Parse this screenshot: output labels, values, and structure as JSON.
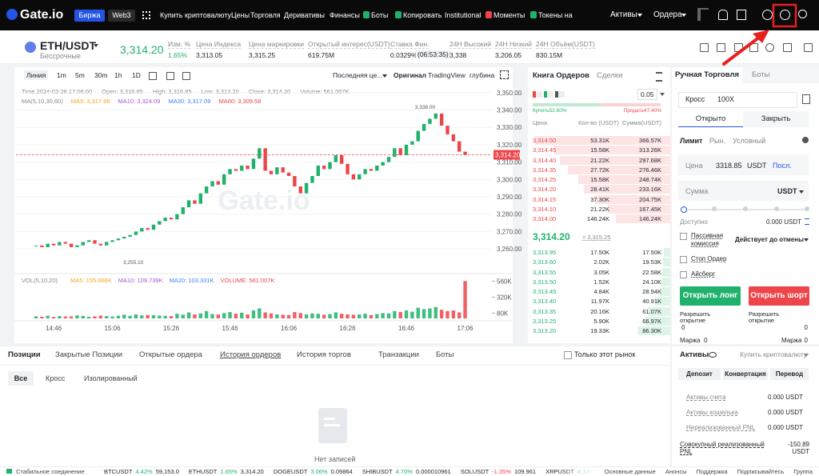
{
  "nav": {
    "logo": "Gate.io",
    "tabs": [
      "Биржа",
      "Web3"
    ],
    "menu": [
      "Купить криптовалюту",
      "Цены",
      "Торговля",
      "Деривативы",
      "Финансы",
      "Боты",
      "Копировать",
      "Institutional",
      "Моменты",
      "Токены на"
    ],
    "right": [
      "Активы",
      "Ордера"
    ]
  },
  "ticker": {
    "pair": "ETH/USDT",
    "kind": "Бессрочные",
    "price": "3,314.20",
    "stats": [
      [
        "Изм. %",
        "1.65%"
      ],
      [
        "Цена Индекса",
        "3,313.05"
      ],
      [
        "Цена маркировки",
        "3,315.25"
      ],
      [
        "Открытый интерес(USDT)",
        "619.75M"
      ],
      [
        "Ставка Фин.",
        "0.0329%",
        "(06:53:35)"
      ],
      [
        "24H Высокий",
        "3,338"
      ],
      [
        "24H Низкий",
        "3,206.05"
      ],
      [
        "24H Объём(USDT)",
        "830.15M"
      ]
    ]
  },
  "chart": {
    "intervals": [
      "Линия",
      "1m",
      "5m",
      "30m",
      "1h",
      "1D"
    ],
    "price_type": "Последняя це...",
    "views": [
      "Оригинал",
      "TradingView",
      "глубина"
    ],
    "info": [
      "Time 2024-02-28 17:06:00",
      "Open: 3,316.85",
      "High: 3,316.85",
      "Low: 3,313.20",
      "Close: 3,314.20",
      "Volume: 561.007K"
    ],
    "ma": {
      "title": "MA(5,10,30,60)",
      "items": [
        {
          "text": "MA5: 3,317.96",
          "color": "#f5a623"
        },
        {
          "text": "MA10: 3,324.09",
          "color": "#a259d9"
        },
        {
          "text": "MA30: 3,317.09",
          "color": "#3b82f6"
        },
        {
          "text": "MA60: 3,309.58",
          "color": "#e5484d"
        }
      ]
    },
    "watermark": "Gate.io",
    "ylim": [
      3249,
      3355
    ],
    "yticks": [
      {
        "value": 3350,
        "label": "3,350.00"
      },
      {
        "value": 3340,
        "label": "3,340.00"
      },
      {
        "value": 3330,
        "label": "3,330.00"
      },
      {
        "value": 3320,
        "label": "3,320.00"
      },
      {
        "value": 3310,
        "label": "3,310.00"
      },
      {
        "value": 3300,
        "label": "3,300.00"
      },
      {
        "value": 3290,
        "label": "3,290.00"
      },
      {
        "value": 3280,
        "label": "3,280.00"
      },
      {
        "value": 3270,
        "label": "3,270.00"
      },
      {
        "value": 3260,
        "label": "3,260.00"
      }
    ],
    "last_price": {
      "value": 3314.2,
      "label": "3,314.20"
    },
    "high_mark": {
      "value": 3338,
      "label": "3,338.00"
    },
    "low_mark": {
      "value": 3255.1,
      "label": "3,255.10"
    },
    "up_color": "#20b26c",
    "down_color": "#ef454a",
    "closes": [
      3262,
      3261,
      3263,
      3262,
      3264,
      3263,
      3261,
      3262,
      3264,
      3265,
      3263,
      3262,
      3264,
      3265,
      3266,
      3267,
      3268,
      3270,
      3272,
      3271,
      3274,
      3276,
      3278,
      3277,
      3280,
      3284,
      3288,
      3286,
      3292,
      3296,
      3299,
      3297,
      3303,
      3306,
      3305,
      3308,
      3306,
      3312,
      3318,
      3305,
      3303,
      3307,
      3304,
      3302,
      3296,
      3292,
      3298,
      3302,
      3308,
      3306,
      3310,
      3314,
      3309,
      3303,
      3300,
      3303,
      3306,
      3305,
      3308,
      3310,
      3313,
      3318,
      3314,
      3320,
      3322,
      3328,
      3332,
      3335,
      3338,
      3331,
      3326,
      3322,
      3316,
      3314.2
    ],
    "vol": {
      "title": "VOL(5,10,20)",
      "items": [
        {
          "text": "MA5: 155.666K",
          "color": "#f5a623"
        },
        {
          "text": "MA10: 109.739K",
          "color": "#a259d9"
        },
        {
          "text": "MA20: 103.331K",
          "color": "#3b82f6"
        },
        {
          "text": "VOLUME: 561.007K",
          "color": "#e5484d"
        }
      ],
      "ylim": [
        0,
        600
      ],
      "yticks": [
        {
          "value": 560,
          "label": "560K"
        },
        {
          "value": 320,
          "label": "320K"
        },
        {
          "value": 80,
          "label": "80K"
        }
      ],
      "values": [
        30,
        25,
        40,
        22,
        35,
        28,
        30,
        45,
        38,
        25,
        30,
        42,
        35,
        28,
        40,
        55,
        38,
        60,
        45,
        50,
        48,
        42,
        38,
        35,
        70,
        55,
        90,
        60,
        75,
        110,
        65,
        58,
        80,
        95,
        70,
        85,
        60,
        120,
        150,
        90,
        75,
        60,
        55,
        50,
        95,
        80,
        60,
        75,
        70,
        55,
        65,
        90,
        70,
        60,
        55,
        60,
        70,
        50,
        65,
        80,
        75,
        110,
        95,
        120,
        100,
        160,
        140,
        150,
        170,
        130,
        110,
        120,
        90,
        561
      ]
    },
    "xticks": [
      "14:46",
      "15:06",
      "15:26",
      "15:46",
      "16:06",
      "16:26",
      "16:46",
      "17:06"
    ]
  },
  "orderbook": {
    "tabs": [
      "Книга Ордеров",
      "Сделки"
    ],
    "step": "0.05",
    "buy": "Купить52.60%",
    "sell": "Продать47.40%",
    "headers": [
      "Цена",
      "Кол-во (USDT)",
      "Сумма(USDT)"
    ],
    "asks": [
      [
        "3,314.50",
        "53.31K",
        "366.57K"
      ],
      [
        "3,314.45",
        "15.58K",
        "313.26K"
      ],
      [
        "3,314.40",
        "21.22K",
        "297.68K"
      ],
      [
        "3,314.35",
        "27.72K",
        "276.46K"
      ],
      [
        "3,314.25",
        "15.58K",
        "248.74K"
      ],
      [
        "3,314.20",
        "28.41K",
        "233.16K"
      ],
      [
        "3,314.15",
        "37.30K",
        "204.75K"
      ],
      [
        "3,314.10",
        "21.22K",
        "167.45K"
      ],
      [
        "3,314.00",
        "146.24K",
        "146.24K"
      ]
    ],
    "last": "3,314.20",
    "mark": "≈ 3,315.25",
    "bids": [
      [
        "3,313.95",
        "17.50K",
        "17.50K"
      ],
      [
        "3,313.60",
        "2.02K",
        "19.53K"
      ],
      [
        "3,313.55",
        "3.05K",
        "22.58K"
      ],
      [
        "3,313.50",
        "1.52K",
        "24.10K"
      ],
      [
        "3,313.45",
        "4.84K",
        "28.94K"
      ],
      [
        "3,313.40",
        "11.97K",
        "40.91K"
      ],
      [
        "3,313.35",
        "20.16K",
        "61.07K"
      ],
      [
        "3,313.25",
        "5.90K",
        "66.97K"
      ],
      [
        "3,313.20",
        "19.33K",
        "86.30K"
      ]
    ]
  },
  "trade": {
    "tabs": [
      "Ручная Торговля",
      "Боты"
    ],
    "margin_mode": "Кросс",
    "leverage": "100X",
    "sides": [
      "Открыто",
      "Закрыть"
    ],
    "order_types": [
      "Лимит",
      "Рын.",
      "Условный"
    ],
    "price_label": "Цена",
    "price": "3318.85",
    "price_unit": "USDT",
    "last_btn": "Посл.",
    "amount_label": "Сумма",
    "amount_unit": "USDT",
    "available_label": "Доступно",
    "available": "0.000 USDT",
    "options": [
      "Пассивная комиссия",
      "Стоп Ордер",
      "Айсберг"
    ],
    "tif": "Действует до отмены",
    "long": "Открыть лонг",
    "short": "Открыть шорт",
    "allow": "Разрешить открытие",
    "allow_long": "0",
    "allow_short": "0",
    "margin_label": "Маржа",
    "margin_long": "0",
    "margin_short": "0"
  },
  "assets": {
    "title": "Активы",
    "buy": "Купить криптовалюту",
    "buttons": [
      "Депозит",
      "Конвертация",
      "Перевод"
    ],
    "rows": [
      [
        "Активы счета",
        "0.000 USDT"
      ],
      [
        "Активы кошелька",
        "0.000 USDT"
      ],
      [
        "Нереализованный PNL",
        "0.000 USDT"
      ],
      [
        "Совокупный реализованный PNL",
        "-150.89 USDT"
      ]
    ]
  },
  "bottom": {
    "tabs": [
      "Позиции",
      "Закрытые Позиции",
      "Открытые ордера",
      "История ордеров",
      "История торгов",
      "Транзакции",
      "Боты"
    ],
    "only_market": "Только этот рынок",
    "subtabs": [
      "Все",
      "Кросс",
      "Изолированный"
    ],
    "empty": "Нет записей"
  },
  "footer": {
    "status": "Стабильное соединение",
    "tickers": [
      [
        "BTCUSDT",
        "4.42%",
        "59,153.0"
      ],
      [
        "ETHUSDT",
        "1.65%",
        "3,314.20"
      ],
      [
        "DOGEUSDT",
        "3.06%",
        "0.09864"
      ],
      [
        "SHIBUSDT",
        "4.70%",
        "0.000010961"
      ],
      [
        "SOLUSDT",
        "-1.35%",
        "109.961"
      ],
      [
        "XRPUSDT",
        "4.14%"
      ]
    ],
    "links": [
      "Основные данные",
      "Анонсы",
      "Поддержка",
      "Подписывайтесь",
      "Группа"
    ]
  }
}
